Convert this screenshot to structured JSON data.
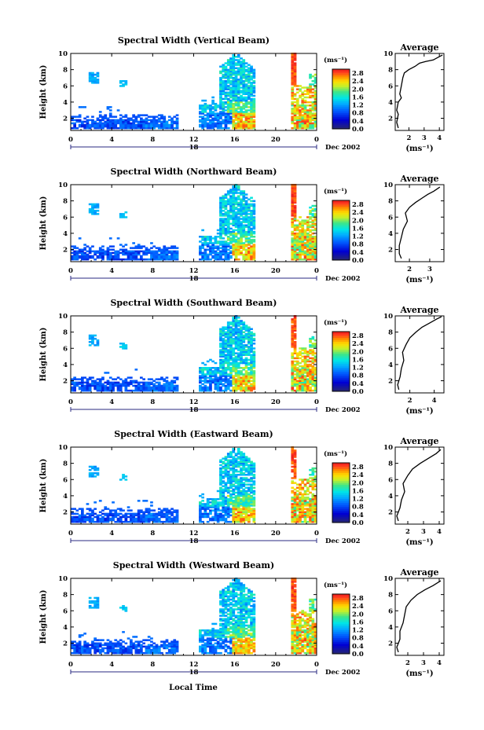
{
  "figure": {
    "xlabel": "Local Time"
  },
  "chart_data": [
    {
      "type": "heatmap",
      "title": "Spectral Width (Vertical Beam)",
      "ylabel": "Height (km)",
      "x_ticks": [
        "0",
        "4",
        "8",
        "12",
        "16",
        "20",
        "0"
      ],
      "day_label": "18",
      "month_label": "Dec 2002",
      "xlim": [
        0,
        24
      ],
      "ylim": [
        0.5,
        10
      ],
      "y_ticks": [
        "2",
        "4",
        "6",
        "8",
        "10"
      ],
      "colorbar": {
        "unit": "(ms⁻¹)",
        "ticks": [
          "2.8",
          "2.4",
          "2.0",
          "1.6",
          "1.2",
          "0.8",
          "0.4",
          "0.0"
        ],
        "range": [
          0,
          3.0
        ]
      },
      "average": {
        "title": "Average",
        "xlabel": "(ms⁻¹)",
        "x_ticks": [
          "2",
          "3",
          "4"
        ],
        "xlim": [
          1.1,
          4.3
        ],
        "y_ticks": [
          "2",
          "4",
          "6",
          "8",
          "10"
        ],
        "profile": [
          [
            1.3,
            0.8
          ],
          [
            1.2,
            1.5
          ],
          [
            1.3,
            2.5
          ],
          [
            1.2,
            3.0
          ],
          [
            1.3,
            4.0
          ],
          [
            1.5,
            4.5
          ],
          [
            1.4,
            5.0
          ],
          [
            1.5,
            6.0
          ],
          [
            1.6,
            7.0
          ],
          [
            1.7,
            7.6
          ],
          [
            2.0,
            8.0
          ],
          [
            2.4,
            8.4
          ],
          [
            2.7,
            8.8
          ],
          [
            3.1,
            9.0
          ],
          [
            3.6,
            9.2
          ],
          [
            4.0,
            9.6
          ],
          [
            4.2,
            9.8
          ]
        ]
      }
    },
    {
      "type": "heatmap",
      "title": "Spectral Width (Northward Beam)",
      "ylabel": "Height (km)",
      "x_ticks": [
        "0",
        "4",
        "8",
        "12",
        "16",
        "20",
        "0"
      ],
      "day_label": "18",
      "month_label": "Dec 2002",
      "xlim": [
        0,
        24
      ],
      "ylim": [
        0.5,
        10
      ],
      "y_ticks": [
        "2",
        "4",
        "6",
        "8",
        "10"
      ],
      "colorbar": {
        "unit": "(ms⁻¹)",
        "ticks": [
          "2.8",
          "2.4",
          "2.0",
          "1.6",
          "1.2",
          "0.8",
          "0.4",
          "0.0"
        ],
        "range": [
          0,
          3.0
        ]
      },
      "average": {
        "title": "Average",
        "xlabel": "(ms⁻¹)",
        "x_ticks": [
          "2",
          "3"
        ],
        "xlim": [
          1.3,
          3.7
        ],
        "y_ticks": [
          "2",
          "4",
          "6",
          "8",
          "10"
        ],
        "profile": [
          [
            1.6,
            0.9
          ],
          [
            1.5,
            1.5
          ],
          [
            1.5,
            2.5
          ],
          [
            1.6,
            3.5
          ],
          [
            1.7,
            4.5
          ],
          [
            1.9,
            5.5
          ],
          [
            1.8,
            6.5
          ],
          [
            2.0,
            7.2
          ],
          [
            2.3,
            7.8
          ],
          [
            2.6,
            8.3
          ],
          [
            2.9,
            8.8
          ],
          [
            3.2,
            9.2
          ],
          [
            3.5,
            9.7
          ]
        ]
      }
    },
    {
      "type": "heatmap",
      "title": "Spectral Width (Southward Beam)",
      "ylabel": "Height (km)",
      "x_ticks": [
        "0",
        "4",
        "8",
        "12",
        "16",
        "20",
        "0"
      ],
      "day_label": "18",
      "month_label": "Dec 2002",
      "xlim": [
        0,
        24
      ],
      "ylim": [
        0.5,
        10
      ],
      "y_ticks": [
        "2",
        "4",
        "6",
        "8",
        "10"
      ],
      "colorbar": {
        "unit": "(ms⁻¹)",
        "ticks": [
          "2.8",
          "2.4",
          "2.0",
          "1.6",
          "1.2",
          "0.8",
          "0.4",
          "0.0"
        ],
        "range": [
          0,
          3.0
        ]
      },
      "average": {
        "title": "Average",
        "xlabel": "(ms⁻¹)",
        "x_ticks": [
          "2",
          "4"
        ],
        "xlim": [
          0.8,
          4.8
        ],
        "y_ticks": [
          "2",
          "4",
          "6",
          "8",
          "10"
        ],
        "profile": [
          [
            1.1,
            0.9
          ],
          [
            1.0,
            1.5
          ],
          [
            1.2,
            2.5
          ],
          [
            1.3,
            3.5
          ],
          [
            1.5,
            4.5
          ],
          [
            1.4,
            5.5
          ],
          [
            1.7,
            6.5
          ],
          [
            2.0,
            7.3
          ],
          [
            2.5,
            8.0
          ],
          [
            3.0,
            8.6
          ],
          [
            3.6,
            9.1
          ],
          [
            4.2,
            9.6
          ],
          [
            4.6,
            9.9
          ]
        ]
      }
    },
    {
      "type": "heatmap",
      "title": "Spectral Width (Eastward Beam)",
      "ylabel": "Height (km)",
      "x_ticks": [
        "0",
        "4",
        "8",
        "12",
        "16",
        "20",
        "0"
      ],
      "day_label": "18",
      "month_label": "Dec 2002",
      "xlim": [
        0,
        24
      ],
      "ylim": [
        0.5,
        10
      ],
      "y_ticks": [
        "2",
        "4",
        "6",
        "8",
        "10"
      ],
      "colorbar": {
        "unit": "(ms⁻¹)",
        "ticks": [
          "2.8",
          "2.4",
          "2.0",
          "1.6",
          "1.2",
          "0.8",
          "0.4",
          "0.0"
        ],
        "range": [
          0,
          3.0
        ]
      },
      "average": {
        "title": "Average",
        "xlabel": "(ms⁻¹)",
        "x_ticks": [
          "2",
          "3",
          "4"
        ],
        "xlim": [
          1.2,
          4.3
        ],
        "y_ticks": [
          "2",
          "4",
          "6",
          "8",
          "10"
        ],
        "profile": [
          [
            1.4,
            0.9
          ],
          [
            1.3,
            1.5
          ],
          [
            1.5,
            2.5
          ],
          [
            1.6,
            3.5
          ],
          [
            1.8,
            4.5
          ],
          [
            1.7,
            5.5
          ],
          [
            2.0,
            6.5
          ],
          [
            2.3,
            7.3
          ],
          [
            2.8,
            8.0
          ],
          [
            3.3,
            8.6
          ],
          [
            3.8,
            9.2
          ],
          [
            4.1,
            9.7
          ]
        ]
      }
    },
    {
      "type": "heatmap",
      "title": "Spectral Width (Westward Beam)",
      "ylabel": "Height (km)",
      "x_ticks": [
        "0",
        "4",
        "8",
        "12",
        "16",
        "20",
        "0"
      ],
      "day_label": "18",
      "month_label": "Dec 2002",
      "xlim": [
        0,
        24
      ],
      "ylim": [
        0.5,
        10
      ],
      "y_ticks": [
        "2",
        "4",
        "6",
        "8",
        "10"
      ],
      "colorbar": {
        "unit": "(ms⁻¹)",
        "ticks": [
          "2.8",
          "2.4",
          "2.0",
          "1.6",
          "1.2",
          "0.8",
          "0.4",
          "0.0"
        ],
        "range": [
          0,
          3.0
        ]
      },
      "average": {
        "title": "Average",
        "xlabel": "(ms⁻¹)",
        "x_ticks": [
          "2",
          "3",
          "4"
        ],
        "xlim": [
          1.2,
          4.3
        ],
        "y_ticks": [
          "2",
          "4",
          "6",
          "8",
          "10"
        ],
        "profile": [
          [
            1.4,
            0.9
          ],
          [
            1.3,
            1.5
          ],
          [
            1.5,
            2.5
          ],
          [
            1.5,
            3.5
          ],
          [
            1.7,
            4.5
          ],
          [
            1.8,
            5.5
          ],
          [
            1.9,
            6.5
          ],
          [
            2.2,
            7.3
          ],
          [
            2.6,
            8.0
          ],
          [
            3.1,
            8.6
          ],
          [
            3.6,
            9.1
          ],
          [
            4.1,
            9.7
          ]
        ]
      }
    }
  ]
}
